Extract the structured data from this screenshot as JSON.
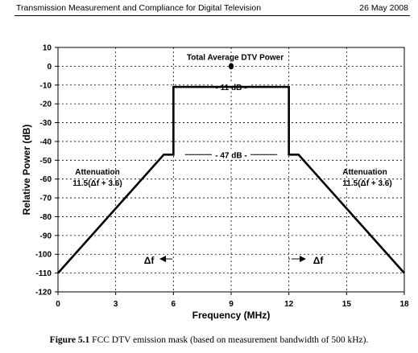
{
  "header": {
    "left": "Transmission Measurement and Compliance for Digital Television",
    "right": "26 May 2008"
  },
  "caption": {
    "label": "Figure 5.1",
    "text": "FCC DTV emission mask (based on measurement bandwidth of 500 kHz)."
  },
  "chart_data": {
    "type": "line",
    "title": "",
    "xlabel": "Frequency (MHz)",
    "ylabel": "Relative Power (dB)",
    "xlim": [
      0,
      18
    ],
    "ylim": [
      -120,
      10
    ],
    "xticks": [
      0,
      3,
      6,
      9,
      12,
      15,
      18
    ],
    "yticks": [
      10,
      0,
      -10,
      -20,
      -30,
      -40,
      -50,
      -60,
      -70,
      -80,
      -90,
      -100,
      -110,
      -120
    ],
    "grid": true,
    "series": [
      {
        "x": [
          0,
          5.5,
          6,
          6,
          12,
          12,
          12.5,
          18
        ],
        "y": [
          -110,
          -47,
          -47,
          -11,
          -11,
          -47,
          -47,
          -110
        ],
        "color": "#000000"
      }
    ],
    "point": {
      "x": 9,
      "y": 0,
      "label": "Total Average DTV  Power"
    },
    "annotations": {
      "level_11": "- 11 dB -",
      "level_47": "- 47 dB -",
      "atten_left_1": "Attenuation",
      "atten_left_2": "11.5(Δf + 3.6)",
      "atten_right_1": "Attenuation",
      "atten_right_2": "11.5(Δf + 3.6)",
      "df_left": "Δf",
      "df_right": "Δf"
    }
  }
}
